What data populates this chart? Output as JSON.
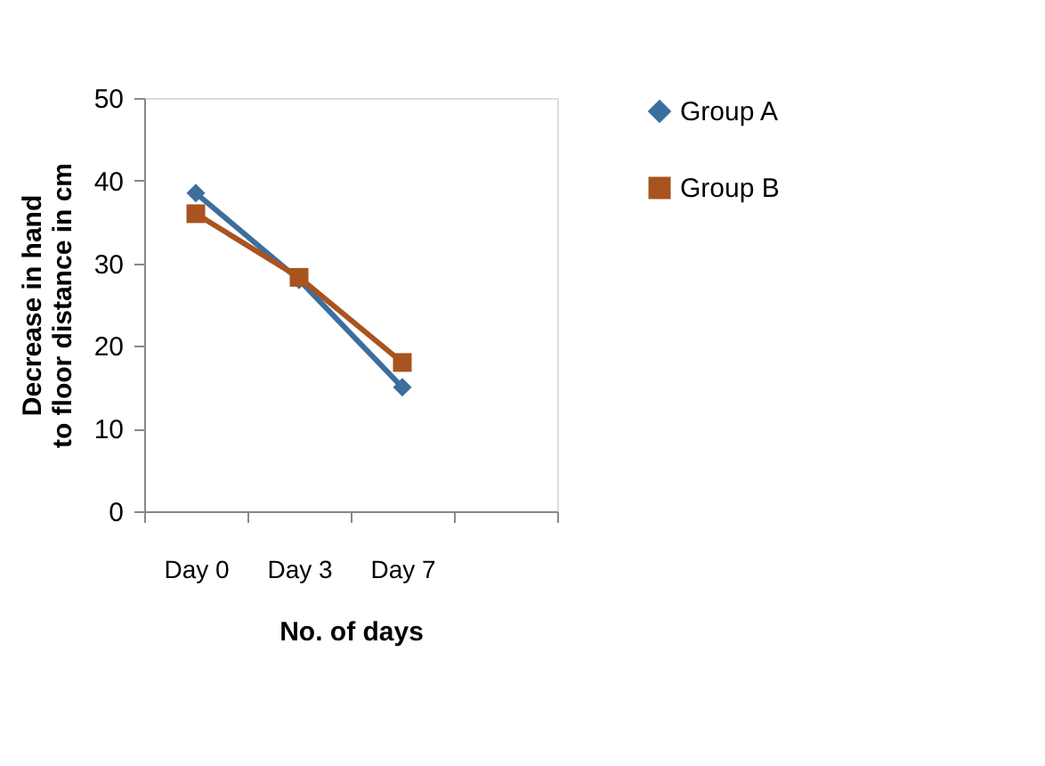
{
  "chart_data": {
    "type": "line",
    "xlabel": "No. of days",
    "ylabel": "Decrease  in hand to floor distance in cm",
    "categories": [
      "Day 0",
      "Day 3",
      "Day 7",
      null
    ],
    "series": [
      {
        "name": "Group A",
        "color": "#3c6e9e",
        "marker": "diamond",
        "values": [
          38.5,
          28,
          15,
          null
        ]
      },
      {
        "name": "Group B",
        "color": "#a9531e",
        "marker": "square",
        "values": [
          36,
          28.3,
          18,
          null
        ]
      }
    ],
    "ylim": [
      0,
      50
    ],
    "yticks": [
      0,
      10,
      20,
      30,
      40,
      50
    ],
    "grid": false,
    "legend": "right",
    "line_style": "solid"
  }
}
